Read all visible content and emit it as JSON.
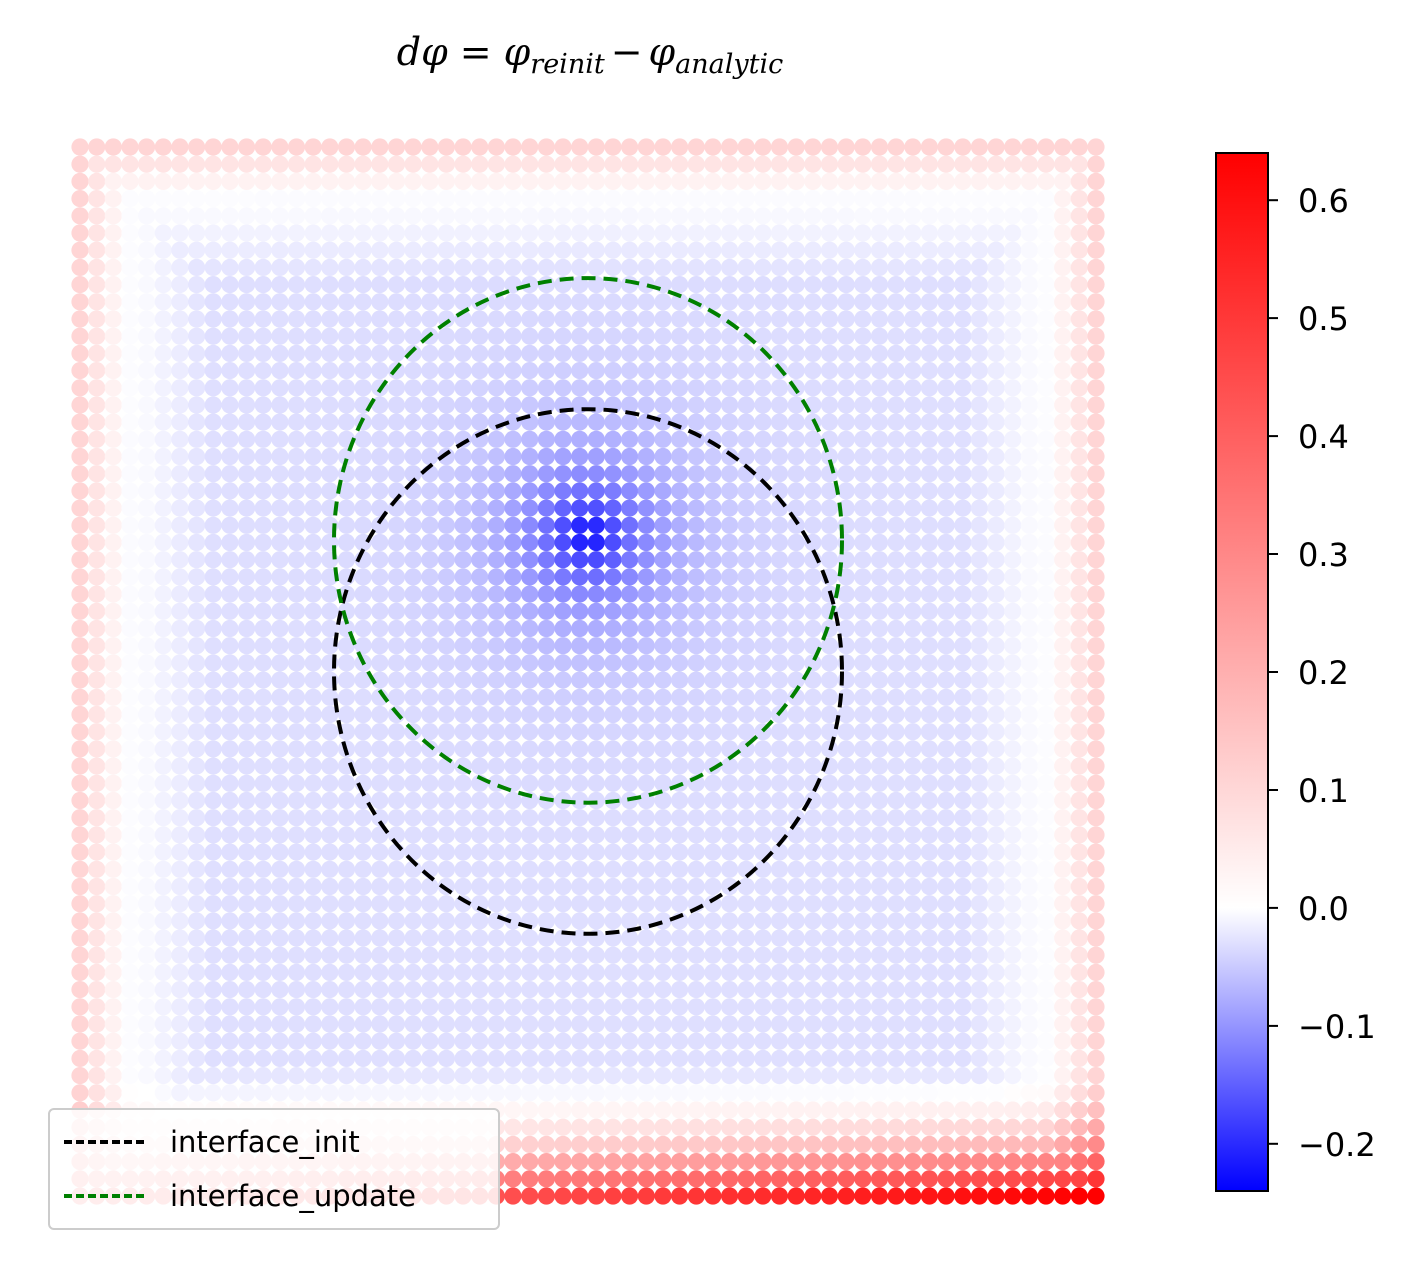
{
  "title": {
    "main": "dφ = φ",
    "sub1": "reinit",
    "minus": "−",
    "phi2": "φ",
    "sub2": "analytic"
  },
  "legend": {
    "items": [
      {
        "label": "interface_init",
        "color": "#000000"
      },
      {
        "label": "interface_update",
        "color": "#008000"
      }
    ]
  },
  "colorbar": {
    "ticks": [
      "0.6",
      "0.5",
      "0.4",
      "0.3",
      "0.2",
      "0.1",
      "0.0",
      "−0.1",
      "−0.2"
    ],
    "tick_values": [
      0.6,
      0.5,
      0.4,
      0.3,
      0.2,
      0.1,
      0.0,
      -0.1,
      -0.2
    ],
    "vmin": -0.24,
    "vmax": 0.64,
    "colormap": "bwr"
  },
  "chart_data": {
    "type": "scatter",
    "title": "dφ = φ_reinit − φ_analytic",
    "xlabel": "",
    "ylabel": "",
    "axes_visible": false,
    "grid": {
      "nx": 62,
      "ny": 62
    },
    "xlim": [
      0,
      1
    ],
    "ylim": [
      0,
      1
    ],
    "field": {
      "center_min": {
        "x": 0.5,
        "y": 0.63,
        "value": -0.24
      },
      "interior_bias": -0.03,
      "border_value": 0.1,
      "bottom_right_max": 0.64
    },
    "series": [
      {
        "name": "interface_init",
        "shape": "circle",
        "center": [
          0.5,
          0.5
        ],
        "radius": 0.25,
        "color": "#000000",
        "linestyle": "dashed"
      },
      {
        "name": "interface_update",
        "shape": "circle",
        "center": [
          0.5,
          0.625
        ],
        "radius": 0.25,
        "color": "#008000",
        "linestyle": "dashed"
      }
    ],
    "legend_position": "lower-left"
  }
}
